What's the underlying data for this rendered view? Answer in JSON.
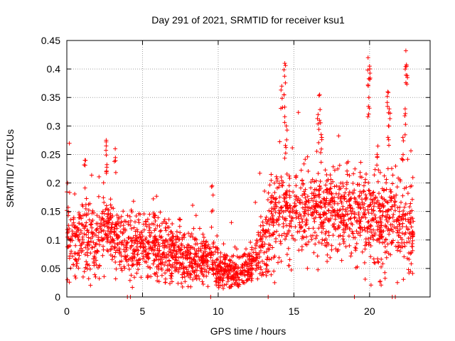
{
  "chart_data": {
    "type": "scatter",
    "title": "Day 291 of 2021, SRMTID for receiver ksu1",
    "xlabel": "GPS time / hours",
    "ylabel": "SRMTID / TECUs",
    "xlim": [
      0,
      24
    ],
    "ylim": [
      0,
      0.45
    ],
    "xticks": [
      0,
      5,
      10,
      15,
      20
    ],
    "xtick_labels": [
      "0",
      "5",
      "10",
      "15",
      "20"
    ],
    "yticks": [
      0,
      0.05,
      0.1,
      0.15,
      0.2,
      0.25,
      0.3,
      0.35,
      0.4,
      0.45
    ],
    "ytick_labels": [
      "0",
      "0.05",
      "0.1",
      "0.15",
      "0.2",
      "0.25",
      "0.3",
      "0.35",
      "0.4",
      "0.45"
    ],
    "grid": true,
    "marker": "+",
    "color": "#ff0000",
    "series": [
      {
        "name": "ksu1",
        "trend": [
          [
            0.0,
            0.11
          ],
          [
            0.5,
            0.1
          ],
          [
            1.0,
            0.105
          ],
          [
            1.5,
            0.1
          ],
          [
            2.0,
            0.095
          ],
          [
            2.5,
            0.12
          ],
          [
            3.0,
            0.115
          ],
          [
            3.5,
            0.1
          ],
          [
            4.0,
            0.085
          ],
          [
            4.5,
            0.09
          ],
          [
            5.0,
            0.095
          ],
          [
            5.5,
            0.09
          ],
          [
            6.0,
            0.085
          ],
          [
            6.5,
            0.08
          ],
          [
            7.0,
            0.075
          ],
          [
            7.5,
            0.075
          ],
          [
            8.0,
            0.07
          ],
          [
            8.5,
            0.072
          ],
          [
            9.0,
            0.07
          ],
          [
            9.5,
            0.068
          ],
          [
            10.0,
            0.05
          ],
          [
            10.5,
            0.045
          ],
          [
            11.0,
            0.04
          ],
          [
            11.5,
            0.045
          ],
          [
            12.0,
            0.055
          ],
          [
            12.5,
            0.07
          ],
          [
            13.0,
            0.09
          ],
          [
            13.5,
            0.12
          ],
          [
            14.0,
            0.145
          ],
          [
            14.5,
            0.16
          ],
          [
            15.0,
            0.15
          ],
          [
            15.5,
            0.15
          ],
          [
            16.0,
            0.155
          ],
          [
            16.5,
            0.155
          ],
          [
            17.0,
            0.15
          ],
          [
            17.5,
            0.145
          ],
          [
            18.0,
            0.145
          ],
          [
            18.5,
            0.14
          ],
          [
            19.0,
            0.14
          ],
          [
            19.5,
            0.15
          ],
          [
            20.0,
            0.14
          ],
          [
            20.5,
            0.13
          ],
          [
            21.0,
            0.125
          ],
          [
            21.5,
            0.13
          ],
          [
            22.0,
            0.13
          ],
          [
            22.5,
            0.125
          ],
          [
            22.9,
            0.12
          ]
        ],
        "spread": [
          [
            0.0,
            0.045
          ],
          [
            4.0,
            0.04
          ],
          [
            8.0,
            0.035
          ],
          [
            10.0,
            0.025
          ],
          [
            12.0,
            0.025
          ],
          [
            13.0,
            0.04
          ],
          [
            14.0,
            0.06
          ],
          [
            16.0,
            0.055
          ],
          [
            18.0,
            0.05
          ],
          [
            20.0,
            0.055
          ],
          [
            22.0,
            0.055
          ],
          [
            23.0,
            0.05
          ]
        ],
        "time_span": [
          0.0,
          22.9
        ],
        "peaks": [
          {
            "x": 14.4,
            "y": 0.41
          },
          {
            "x": 14.2,
            "y": 0.37
          },
          {
            "x": 14.35,
            "y": 0.355
          },
          {
            "x": 14.5,
            "y": 0.3
          },
          {
            "x": 16.7,
            "y": 0.355
          },
          {
            "x": 16.6,
            "y": 0.32
          },
          {
            "x": 16.8,
            "y": 0.285
          },
          {
            "x": 19.9,
            "y": 0.42
          },
          {
            "x": 20.0,
            "y": 0.405
          },
          {
            "x": 19.95,
            "y": 0.35
          },
          {
            "x": 21.2,
            "y": 0.36
          },
          {
            "x": 21.3,
            "y": 0.33
          },
          {
            "x": 21.25,
            "y": 0.3
          },
          {
            "x": 22.4,
            "y": 0.432
          },
          {
            "x": 22.45,
            "y": 0.405
          },
          {
            "x": 22.35,
            "y": 0.33
          },
          {
            "x": 22.2,
            "y": 0.28
          },
          {
            "x": 2.6,
            "y": 0.275
          },
          {
            "x": 2.6,
            "y": 0.265
          },
          {
            "x": 3.2,
            "y": 0.26
          },
          {
            "x": 1.2,
            "y": 0.24
          },
          {
            "x": 9.6,
            "y": 0.195
          },
          {
            "x": 0.05,
            "y": 0.2
          },
          {
            "x": 13.5,
            "y": 0.215
          },
          {
            "x": 18.5,
            "y": 0.235
          },
          {
            "x": 20.5,
            "y": 0.25
          }
        ],
        "zero_markers_x": [
          4.0,
          4.2,
          9.5,
          13.3,
          19.0,
          21.5,
          21.7
        ]
      }
    ]
  }
}
